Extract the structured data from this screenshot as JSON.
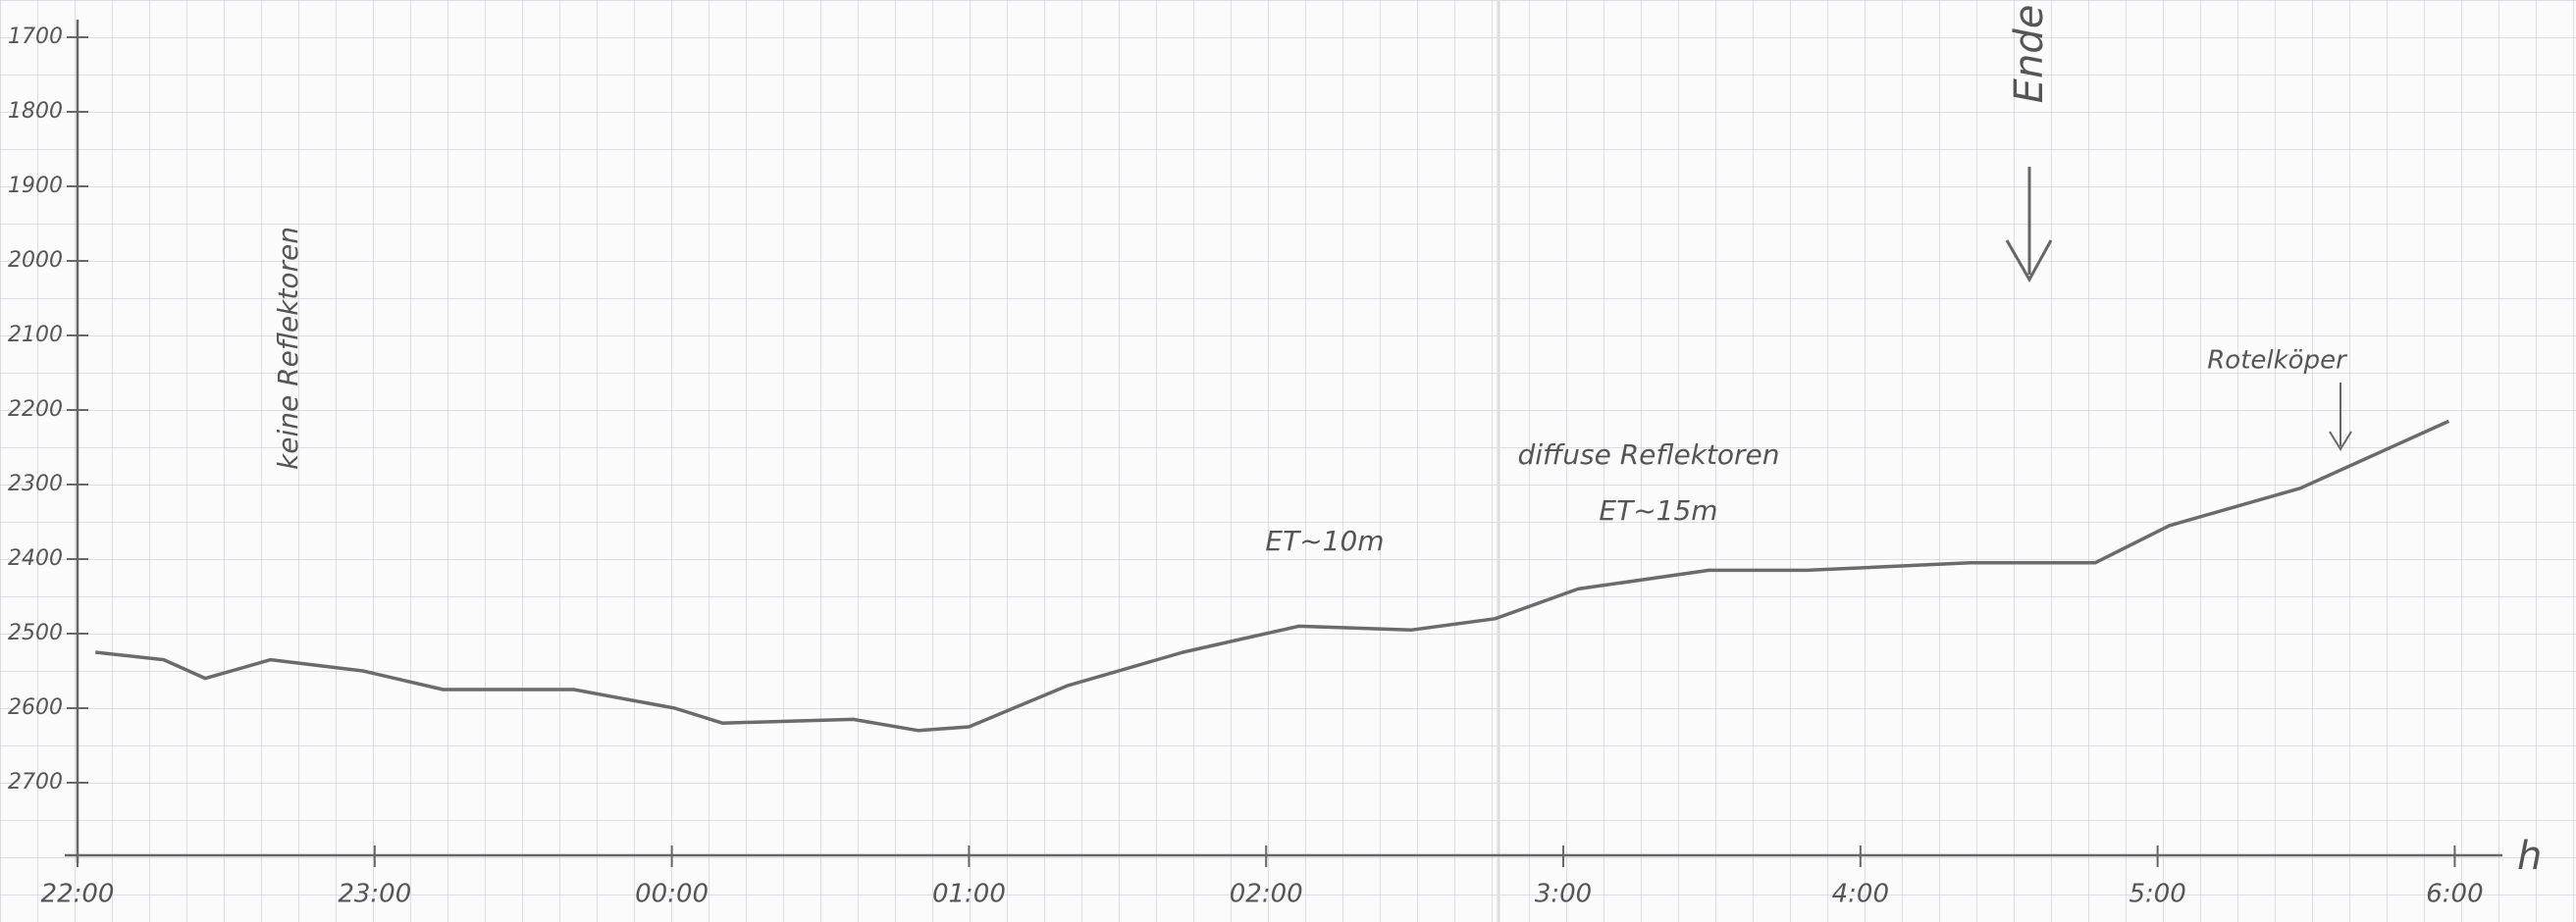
{
  "chart_data": {
    "type": "line",
    "x_label": "h",
    "x": [
      0.06,
      0.29,
      0.43,
      0.65,
      0.96,
      1.23,
      1.67,
      2.01,
      2.17,
      2.61,
      2.83,
      3.0,
      3.33,
      3.72,
      4.11,
      4.49,
      4.77,
      5.05,
      5.49,
      5.82,
      6.37,
      6.79,
      7.04,
      7.48,
      7.98
    ],
    "series": [
      {
        "color": "#6b6b6b",
        "values": [
          2525,
          2535,
          2560,
          2535,
          2550,
          2575,
          2575,
          2600,
          2620,
          2615,
          2630,
          2625,
          2570,
          2525,
          2490,
          2495,
          2480,
          2440,
          2415,
          2415,
          2405,
          2405,
          2355,
          2305,
          2215
        ]
      }
    ],
    "xlim": [
      0,
      8.2
    ],
    "xticks": [
      {
        "value": 0,
        "label": "22:00"
      },
      {
        "value": 1,
        "label": "23:00"
      },
      {
        "value": 2,
        "label": "00:00"
      },
      {
        "value": 3,
        "label": "01:00"
      },
      {
        "value": 4,
        "label": "02:00"
      },
      {
        "value": 5,
        "label": "3:00"
      },
      {
        "value": 6,
        "label": "4:00"
      },
      {
        "value": 7,
        "label": "5:00"
      },
      {
        "value": 8,
        "label": "6:00"
      }
    ],
    "ylim": [
      2800,
      1650
    ],
    "yticks": [
      1700,
      1800,
      1900,
      2000,
      2100,
      2200,
      2300,
      2400,
      2500,
      2600,
      2700
    ],
    "annotations": [
      "keine Reflektoren",
      "ET~10m",
      "diffuse Reflektoren",
      "ET~15m",
      "Rotelköper",
      "Ende"
    ]
  }
}
